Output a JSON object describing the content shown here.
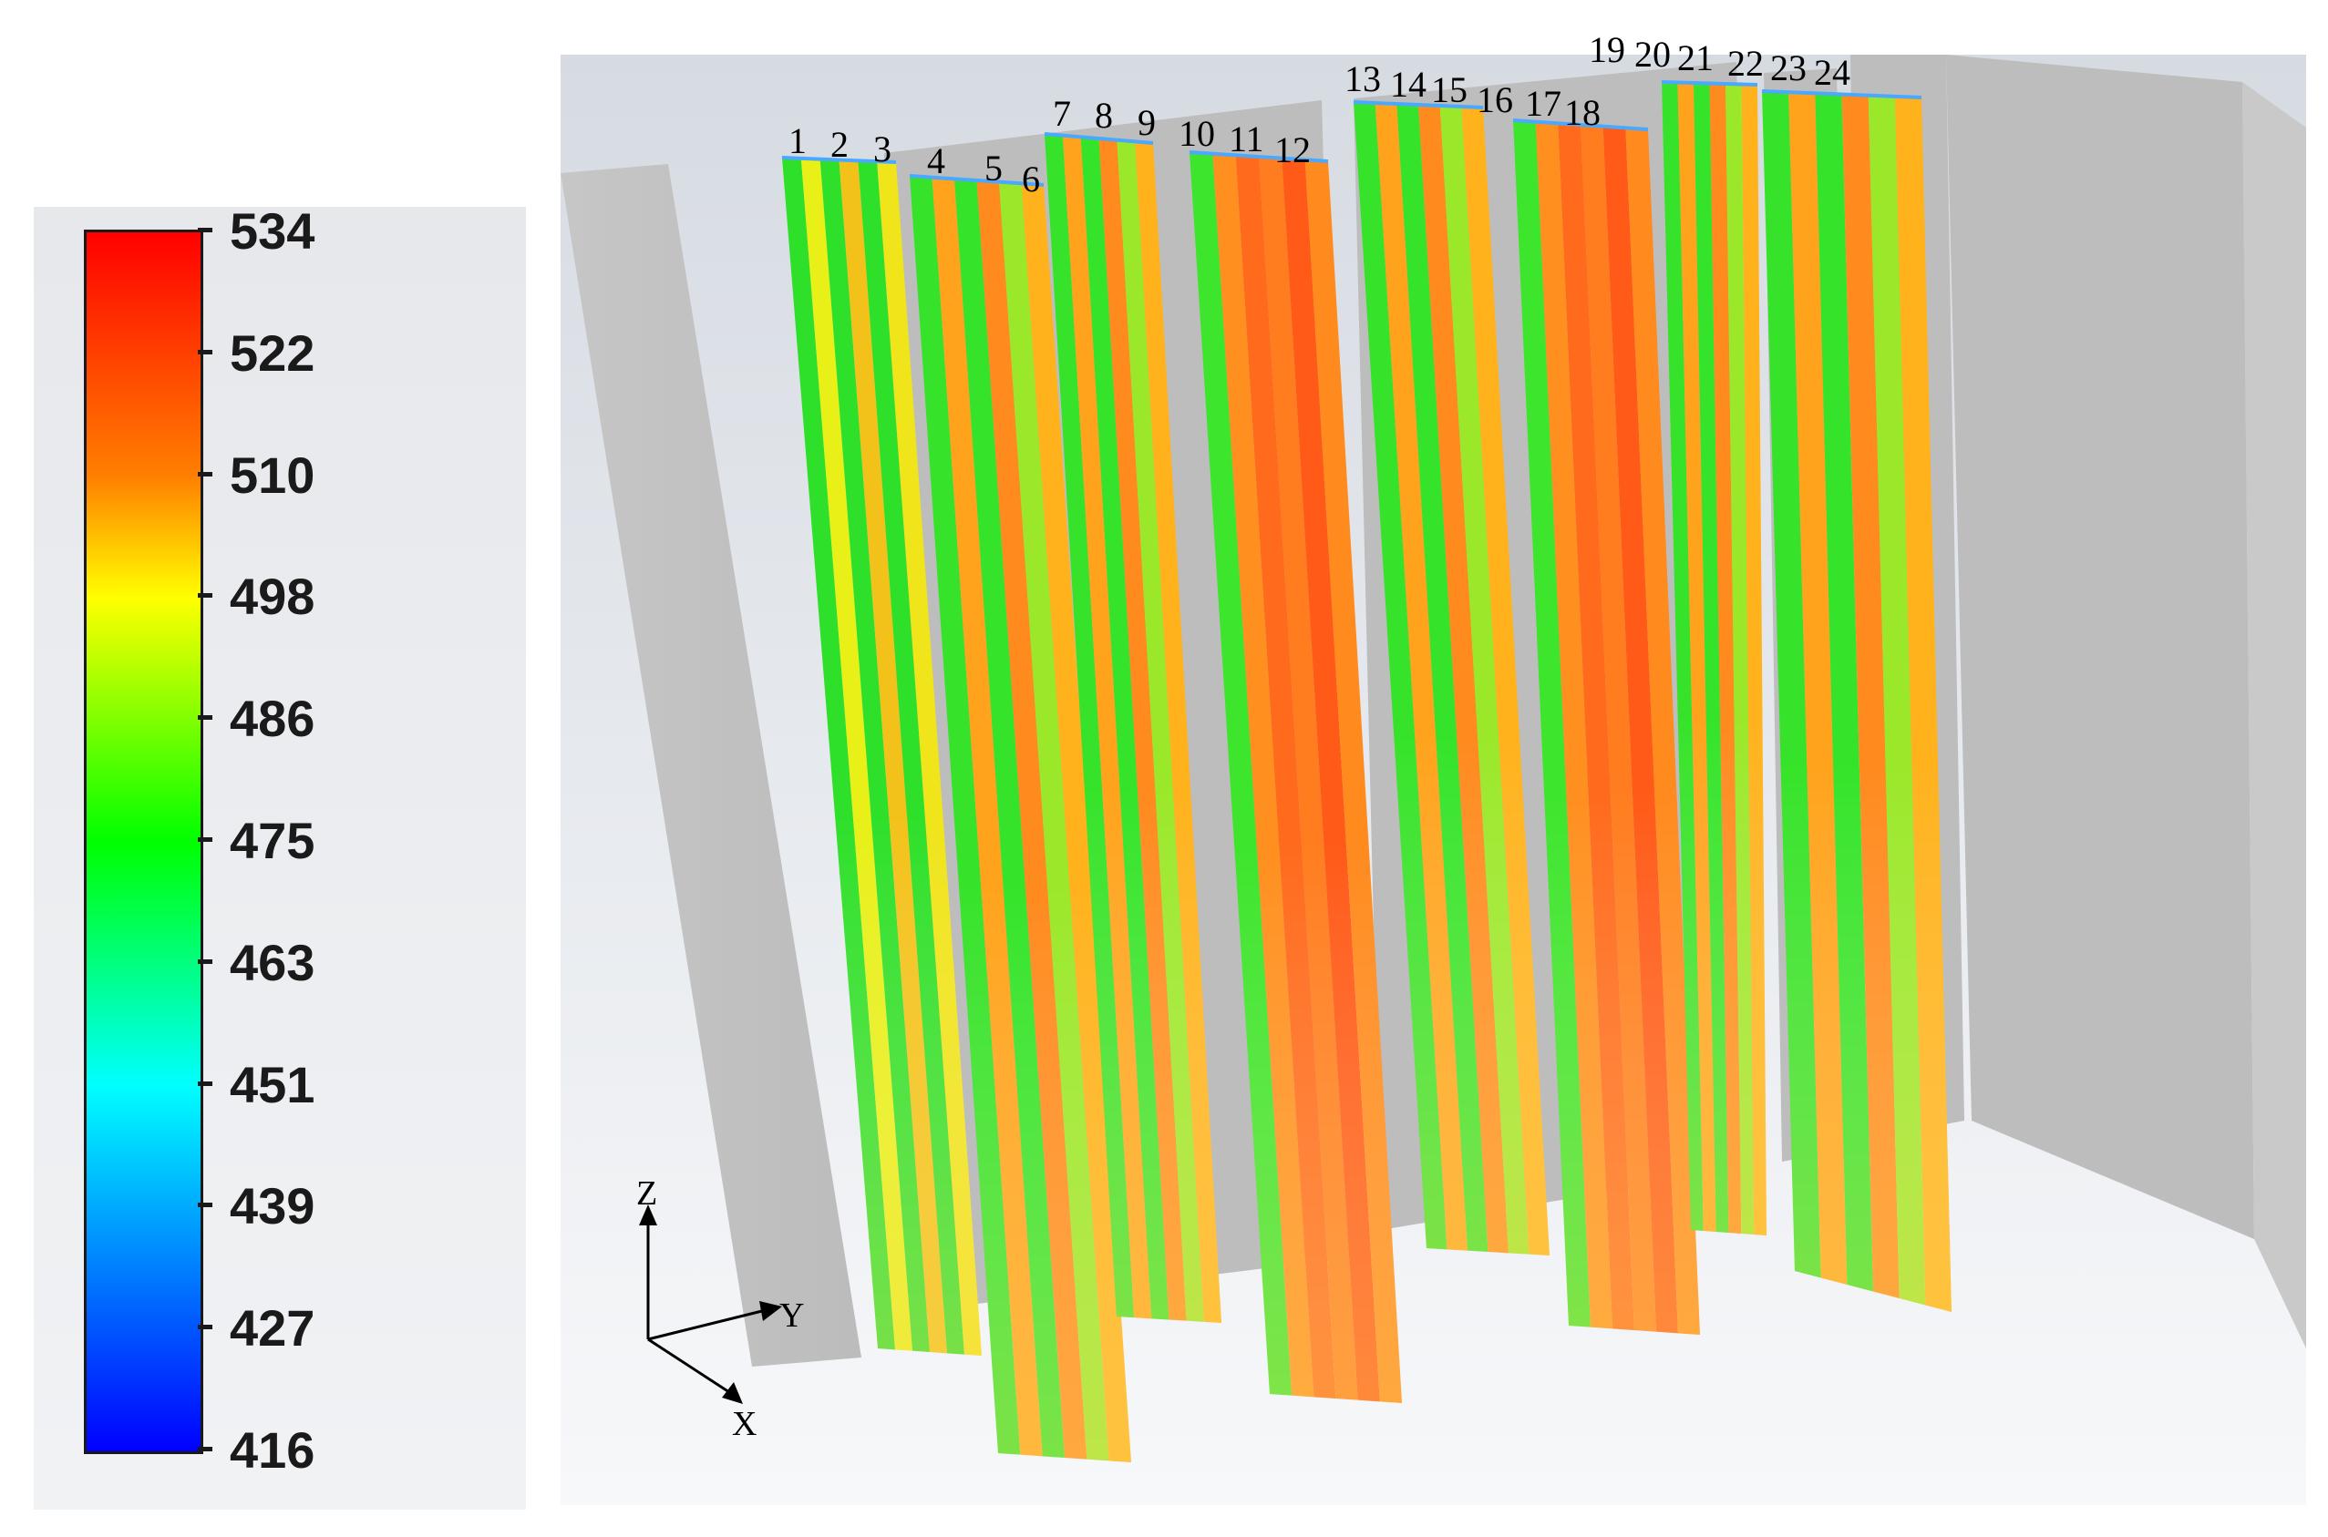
{
  "legend": {
    "labels": [
      "534",
      "522",
      "510",
      "498",
      "486",
      "475",
      "463",
      "451",
      "439",
      "427",
      "416"
    ]
  },
  "tube_numbers": [
    "1",
    "2",
    "3",
    "4",
    "5",
    "6",
    "7",
    "8",
    "9",
    "10",
    "11",
    "12",
    "13",
    "14",
    "15",
    "16",
    "17",
    "18",
    "19",
    "20",
    "21",
    "22",
    "23",
    "24"
  ],
  "axes": {
    "z": "Z",
    "y": "Y",
    "x": "X"
  },
  "colors": {
    "low": "#0000ff",
    "mid": "#00ff00",
    "high": "#ff0000",
    "wall": "#bdbdbd",
    "background": "#e9ecef"
  }
}
